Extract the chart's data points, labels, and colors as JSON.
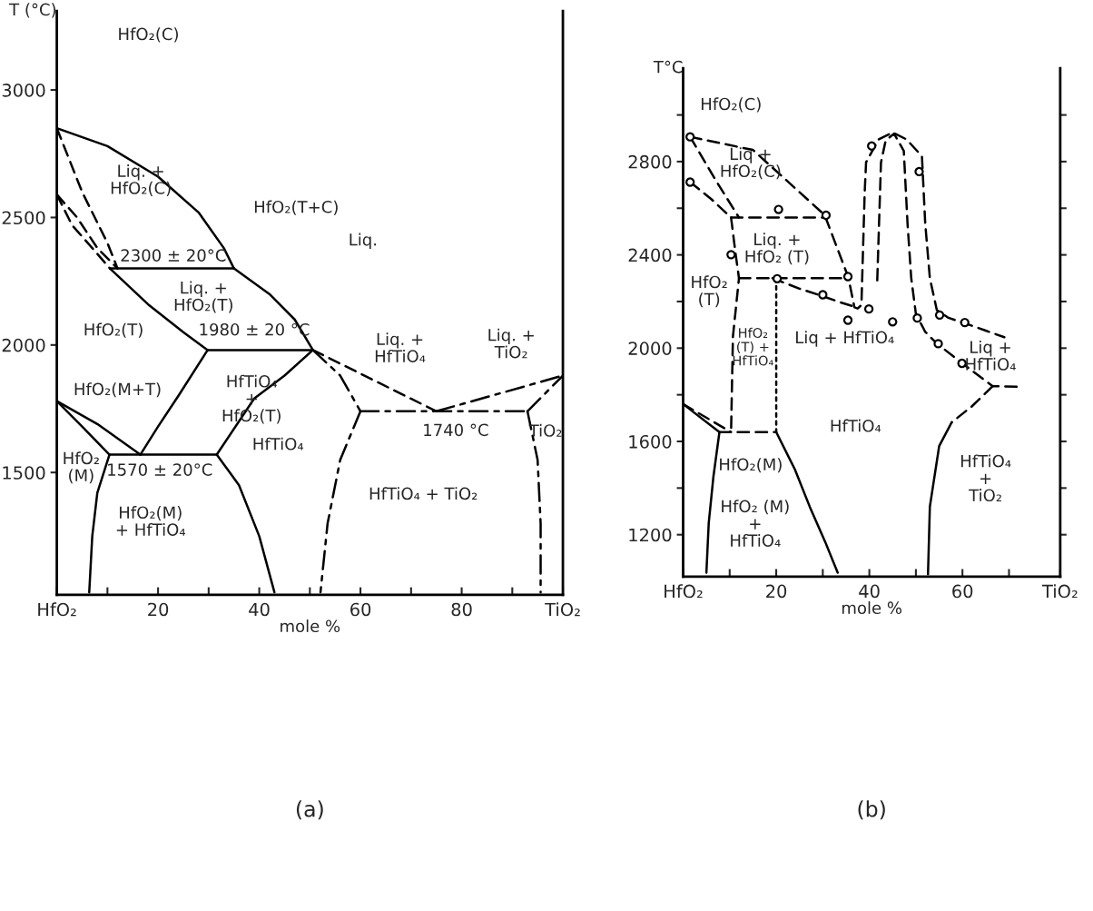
{
  "chart_data": [
    {
      "type": "line",
      "title": "(a)",
      "xlabel": "mole %",
      "ylabel": "T (°C)",
      "xlim": [
        0,
        100
      ],
      "ylim": [
        1020,
        3310
      ],
      "xticks": [
        {
          "value": 0,
          "label": "HfO₂"
        },
        {
          "value": 10,
          "label": null
        },
        20,
        {
          "value": 30,
          "label": null
        },
        40,
        {
          "value": 50,
          "label": null
        },
        60,
        {
          "value": 70,
          "label": null
        },
        80,
        {
          "value": 90,
          "label": null
        },
        {
          "value": 100,
          "label": "TiO₂"
        }
      ],
      "yticks": [
        1500,
        2000,
        2500,
        3000
      ],
      "series": [
        {
          "color": "#000000",
          "line_style": "solid",
          "x": [
            0,
            10,
            20,
            28,
            33,
            35
          ],
          "values": [
            2850,
            2780,
            2660,
            2520,
            2380,
            2300
          ]
        },
        {
          "color": "#000000",
          "line_style": "solid",
          "x": [
            35,
            42,
            47,
            50.6
          ],
          "values": [
            2300,
            2200,
            2100,
            1980
          ]
        },
        {
          "color": "#000000",
          "line_style": "dashed",
          "x": [
            0,
            5,
            10,
            12
          ],
          "values": [
            2850,
            2600,
            2400,
            2300
          ]
        },
        {
          "color": "#000000",
          "line_style": "dashed",
          "x": [
            0,
            4,
            8,
            12
          ],
          "values": [
            2590,
            2500,
            2380,
            2300
          ]
        },
        {
          "color": "#000000",
          "line_style": "dashed",
          "x": [
            0,
            3,
            7,
            10.5
          ],
          "values": [
            2590,
            2470,
            2380,
            2300
          ]
        },
        {
          "color": "#000000",
          "line_style": "solid",
          "x": [
            10.5,
            35
          ],
          "values": [
            2300,
            2300
          ]
        },
        {
          "color": "#000000",
          "line_style": "solid",
          "x": [
            10.5,
            18,
            25,
            29.8
          ],
          "values": [
            2300,
            2160,
            2050,
            1980
          ]
        },
        {
          "color": "#000000",
          "line_style": "solid",
          "x": [
            29.8,
            50.6
          ],
          "values": [
            1980,
            1980
          ]
        },
        {
          "color": "#000000",
          "line_style": "solid",
          "x": [
            29.8,
            24,
            20,
            16.5
          ],
          "values": [
            1980,
            1800,
            1680,
            1570
          ]
        },
        {
          "color": "#000000",
          "line_style": "solid",
          "x": [
            50.6,
            45,
            39,
            31.6
          ],
          "values": [
            1980,
            1880,
            1790,
            1570
          ]
        },
        {
          "color": "#000000",
          "line_style": "solid",
          "x": [
            10.4,
            31.6
          ],
          "values": [
            1570,
            1570
          ]
        },
        {
          "color": "#000000",
          "line_style": "solid",
          "x": [
            0,
            5,
            10.4
          ],
          "values": [
            1780,
            1680,
            1570
          ]
        },
        {
          "color": "#000000",
          "line_style": "solid",
          "x": [
            0,
            8,
            16.5
          ],
          "values": [
            1780,
            1690,
            1570
          ]
        },
        {
          "color": "#000000",
          "line_style": "solid",
          "x": [
            10.4,
            8,
            7,
            6.4
          ],
          "values": [
            1570,
            1420,
            1250,
            1030
          ]
        },
        {
          "color": "#000000",
          "line_style": "solid",
          "x": [
            31.6,
            36,
            40,
            43
          ],
          "values": [
            1570,
            1450,
            1250,
            1030
          ]
        },
        {
          "color": "#000000",
          "line_style": "dashdot",
          "x": [
            50.6,
            56,
            60
          ],
          "values": [
            1980,
            1880,
            1740
          ]
        },
        {
          "color": "#000000",
          "line_style": "dashdot",
          "x": [
            60,
            56,
            53.5,
            52.1
          ],
          "values": [
            1740,
            1550,
            1300,
            1030
          ]
        },
        {
          "color": "#000000",
          "line_style": "dashed",
          "x": [
            50.6,
            75
          ],
          "values": [
            1980,
            1740
          ]
        },
        {
          "color": "#000000",
          "line_style": "dashdot",
          "x": [
            60,
            93
          ],
          "values": [
            1740,
            1740
          ]
        },
        {
          "color": "#000000",
          "line_style": "dashdot",
          "x": [
            75,
            100
          ],
          "values": [
            1740,
            1880
          ]
        },
        {
          "color": "#000000",
          "line_style": "dashdot",
          "x": [
            93,
            100
          ],
          "values": [
            1740,
            1880
          ]
        },
        {
          "color": "#000000",
          "line_style": "dashdot",
          "x": [
            93,
            95,
            95.6,
            95.6
          ],
          "values": [
            1740,
            1550,
            1300,
            1030
          ]
        }
      ],
      "annotations": [
        "HfO₂(C)",
        "Liq. +\nHfO₂(C)",
        "HfO₂(T+C)",
        "Liq.",
        "2300 ± 20°C",
        "Liq. +\nHfO₂(T)",
        "HfO₂(T)",
        "1980 ± 20 °C",
        "Liq. +\nHfTiO₄",
        "Liq. +\nTiO₂",
        "HfO₂(M+T)",
        "HfTiO₄\n+\nHfO₂(T)",
        "HfTiO₄",
        "1740 °C",
        "TiO₂",
        "HfO₂\n(M)",
        "1570 ± 20°C",
        "HfO₂(M)\n+ HfTiO₄",
        "HfTiO₄ + TiO₂"
      ]
    },
    {
      "type": "line",
      "title": "(b)",
      "xlabel": "mole %",
      "ylabel": "T°C",
      "xlim": [
        0,
        81
      ],
      "ylim": [
        1020,
        3200
      ],
      "xticks": [
        {
          "value": 0,
          "label": "HfO₂"
        },
        {
          "value": 10,
          "label": null
        },
        20,
        {
          "value": 30,
          "label": null
        },
        40,
        {
          "value": 50,
          "label": null
        },
        60,
        {
          "value": 70,
          "label": null
        },
        {
          "value": 81,
          "label": "TiO₂"
        }
      ],
      "yticks": [
        1200,
        {
          "value": 1400,
          "label": null
        },
        1600,
        {
          "value": 1800,
          "label": null
        },
        2000,
        {
          "value": 2200,
          "label": null
        },
        2400,
        {
          "value": 2600,
          "label": null
        },
        2800,
        {
          "value": 3000,
          "label": null
        }
      ],
      "series": [
        {
          "color": "#000000",
          "line_style": "dashed",
          "x": [
            1.5,
            15,
            30.4,
            35.5,
            36.8,
            37.5,
            38.3,
            39,
            39.3,
            42,
            45,
            48,
            51.3,
            52,
            53,
            54.5,
            57,
            60.2,
            65,
            69
          ],
          "values": [
            2906,
            2850,
            2571,
            2303,
            2175,
            2170,
            2185,
            2668,
            2797,
            2895,
            2925,
            2895,
            2823,
            2536,
            2300,
            2163,
            2130,
            2109,
            2075,
            2047
          ]
        },
        {
          "color": "#000000",
          "line_style": "dashed",
          "x": [
            41.7,
            42.5,
            43.5,
            45.3,
            47.4,
            48.2,
            49,
            50,
            52,
            54.5,
            60,
            66.5,
            72
          ],
          "values": [
            2291,
            2796,
            2890,
            2920,
            2846,
            2536,
            2300,
            2147,
            2070,
            2020,
            1934,
            1837,
            1835
          ]
        },
        {
          "color": "#000000",
          "line_style": "dashed",
          "x": [
            66.5,
            62,
            57.7
          ],
          "values": [
            1837,
            1750,
            1682
          ]
        },
        {
          "color": "#000000",
          "line_style": "solid",
          "x": [
            57.7,
            55,
            53,
            52.6
          ],
          "values": [
            1682,
            1580,
            1320,
            1030
          ]
        },
        {
          "color": "#000000",
          "line_style": "dashed",
          "x": [
            1.5,
            6,
            10.3
          ],
          "values": [
            2712,
            2640,
            2560
          ]
        },
        {
          "color": "#000000",
          "line_style": "dashed",
          "x": [
            1.5,
            7,
            12
          ],
          "values": [
            2906,
            2720,
            2560
          ]
        },
        {
          "color": "#000000",
          "line_style": "dashed",
          "x": [
            10.3,
            30.7
          ],
          "values": [
            2560,
            2560
          ]
        },
        {
          "color": "#000000",
          "line_style": "dashed",
          "x": [
            10.3,
            11.3,
            12,
            10.7,
            10.3
          ],
          "values": [
            2560,
            2400,
            2300,
            2050,
            1640
          ]
        },
        {
          "color": "#000000",
          "line_style": "dashed",
          "x": [
            12,
            35.5
          ],
          "values": [
            2300,
            2300
          ]
        },
        {
          "color": "#000000",
          "line_style": "dashed",
          "x": [
            19.2,
            25,
            29.7,
            34,
            37.3
          ],
          "values": [
            2300,
            2255,
            2225,
            2195,
            2175
          ]
        },
        {
          "color": "#000000",
          "line_style": "dotted",
          "x": [
            20,
            20
          ],
          "values": [
            2300,
            1640
          ]
        },
        {
          "color": "#000000",
          "line_style": "dashed",
          "x": [
            7.8,
            20
          ],
          "values": [
            1640,
            1640
          ]
        },
        {
          "color": "#000000",
          "line_style": "solid",
          "x": [
            0,
            7.8
          ],
          "values": [
            1760,
            1640
          ]
        },
        {
          "color": "#000000",
          "line_style": "dashed",
          "x": [
            0,
            10.3
          ],
          "values": [
            1760,
            1640
          ]
        },
        {
          "color": "#000000",
          "line_style": "solid",
          "x": [
            7.8,
            6.5,
            5.5,
            5
          ],
          "values": [
            1640,
            1448,
            1250,
            1037
          ]
        },
        {
          "color": "#000000",
          "line_style": "solid",
          "x": [
            20,
            24,
            27.2,
            30.5,
            33.2
          ],
          "values": [
            1640,
            1480,
            1320,
            1170,
            1037
          ]
        },
        {
          "type": "scatter",
          "marker": "circle",
          "color": "#000000",
          "x": [
            1.5,
            1.5,
            20.5,
            30.7,
            10.3,
            20.2,
            35.4,
            30,
            40.5,
            50.7,
            39.9,
            35.4,
            45,
            50.3,
            55.1,
            60.5,
            54.8,
            59.9
          ],
          "values": [
            2906,
            2712,
            2595,
            2570,
            2401,
            2298,
            2307,
            2229,
            2867,
            2757,
            2168,
            2120,
            2113,
            2129,
            2142,
            2110,
            2019,
            1935
          ]
        }
      ],
      "annotations": [
        "HfO₂(C)",
        "Liq +\nHfO₂(C)",
        "Liq. +\nHfO₂ (T)",
        "HfO₂\n(T)",
        "HfO₂\n(T) +\nHfTiO₄",
        "Liq + HfTiO₄",
        "Liq +\nHfTiO₄",
        "HfTiO₄",
        "HfO₂(M)",
        "HfO₂ (M)\n+\nHfTiO₄",
        "HfTiO₄\n+\nTiO₂"
      ]
    }
  ]
}
